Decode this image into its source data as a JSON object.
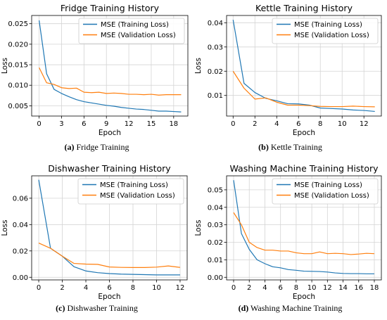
{
  "colors": {
    "train": "#1f77b4",
    "val": "#ff7f0e",
    "grid": "#d4d4d4",
    "axis": "#000000"
  },
  "chart_data": [
    {
      "type": "line",
      "title": "Fridge Training History",
      "xlabel": "Epoch",
      "ylabel": "Loss",
      "xlim": [
        -1,
        19.9
      ],
      "ylim": [
        0.0025,
        0.027
      ],
      "xticks": [
        0,
        3,
        6,
        9,
        12,
        15,
        18
      ],
      "yticks": [
        0.005,
        0.01,
        0.015,
        0.02,
        0.025
      ],
      "ytick_labels": [
        "0.005",
        "0.010",
        "0.015",
        "0.020",
        "0.025"
      ],
      "grid": true,
      "legend": "top-right",
      "x": [
        0,
        1,
        2,
        3,
        4,
        5,
        6,
        7,
        8,
        9,
        10,
        11,
        12,
        13,
        14,
        15,
        16,
        17,
        18,
        19
      ],
      "series": [
        {
          "name": "MSE (Training Loss)",
          "color": "#1f77b4",
          "values": [
            0.0258,
            0.0128,
            0.009,
            0.008,
            0.0072,
            0.0065,
            0.006,
            0.0057,
            0.0054,
            0.0051,
            0.0049,
            0.0046,
            0.0044,
            0.0042,
            0.0041,
            0.0039,
            0.0037,
            0.0037,
            0.0036,
            0.0035
          ]
        },
        {
          "name": "MSE (Validation Loss)",
          "color": "#ff7f0e",
          "values": [
            0.0143,
            0.0106,
            0.0102,
            0.0094,
            0.0092,
            0.0093,
            0.0083,
            0.0082,
            0.0083,
            0.008,
            0.0081,
            0.008,
            0.0078,
            0.0078,
            0.0077,
            0.0078,
            0.0076,
            0.0077,
            0.0077,
            0.0077
          ]
        }
      ],
      "caption": {
        "tag": "(a)",
        "text": "Fridge Training"
      }
    },
    {
      "type": "line",
      "title": "Kettle Training History",
      "xlabel": "Epoch",
      "ylabel": "Loss",
      "xlim": [
        -0.6,
        13.6
      ],
      "ylim": [
        0.0015,
        0.043
      ],
      "xticks": [
        0,
        2,
        4,
        6,
        8,
        10,
        12
      ],
      "yticks": [
        0.01,
        0.02,
        0.03,
        0.04
      ],
      "ytick_labels": [
        "0.01",
        "0.02",
        "0.03",
        "0.04"
      ],
      "grid": true,
      "legend": "top-right",
      "x": [
        0,
        1,
        2,
        3,
        4,
        5,
        6,
        7,
        8,
        9,
        10,
        11,
        12,
        13
      ],
      "series": [
        {
          "name": "MSE (Training Loss)",
          "color": "#1f77b4",
          "values": [
            0.0412,
            0.015,
            0.0112,
            0.0088,
            0.0078,
            0.0066,
            0.0065,
            0.006,
            0.0048,
            0.0046,
            0.0044,
            0.004,
            0.0038,
            0.0034
          ]
        },
        {
          "name": "MSE (Validation Loss)",
          "color": "#ff7f0e",
          "values": [
            0.02,
            0.013,
            0.0085,
            0.009,
            0.0072,
            0.006,
            0.006,
            0.0058,
            0.0055,
            0.0054,
            0.0054,
            0.0056,
            0.0054,
            0.0053
          ]
        }
      ],
      "caption": {
        "tag": "(b)",
        "text": "Kettle Training"
      }
    },
    {
      "type": "line",
      "title": "Dishwasher Training History",
      "xlabel": "Epoch",
      "ylabel": "Loss",
      "xlim": [
        -0.6,
        12.6
      ],
      "ylim": [
        -0.002,
        0.077
      ],
      "xticks": [
        0,
        2,
        4,
        6,
        8,
        10,
        12
      ],
      "yticks": [
        0.0,
        0.02,
        0.04,
        0.06
      ],
      "ytick_labels": [
        "0.00",
        "0.02",
        "0.04",
        "0.06"
      ],
      "grid": true,
      "legend": "top-right",
      "x": [
        0,
        1,
        2,
        3,
        4,
        5,
        6,
        7,
        8,
        9,
        10,
        11,
        12
      ],
      "series": [
        {
          "name": "MSE (Training Loss)",
          "color": "#1f77b4",
          "values": [
            0.074,
            0.022,
            0.016,
            0.008,
            0.0048,
            0.0035,
            0.0028,
            0.0024,
            0.0022,
            0.002,
            0.0018,
            0.0018,
            0.0018
          ]
        },
        {
          "name": "MSE (Validation Loss)",
          "color": "#ff7f0e",
          "values": [
            0.026,
            0.022,
            0.016,
            0.0105,
            0.01,
            0.0098,
            0.0078,
            0.0075,
            0.0074,
            0.0074,
            0.0077,
            0.0086,
            0.0075
          ]
        }
      ],
      "caption": {
        "tag": "(c)",
        "text": "Dishwasher Training"
      }
    },
    {
      "type": "line",
      "title": "Washing Machine Training History",
      "xlabel": "Epoch",
      "ylabel": "Loss",
      "xlim": [
        -0.9,
        18.9
      ],
      "ylim": [
        -0.0015,
        0.058
      ],
      "xticks": [
        0,
        2,
        4,
        6,
        8,
        10,
        12,
        14,
        16,
        18
      ],
      "yticks": [
        0.0,
        0.01,
        0.02,
        0.03,
        0.04,
        0.05
      ],
      "ytick_labels": [
        "0.00",
        "0.01",
        "0.02",
        "0.03",
        "0.04",
        "0.05"
      ],
      "grid": true,
      "legend": "top-right",
      "x": [
        0,
        1,
        2,
        3,
        4,
        5,
        6,
        7,
        8,
        9,
        10,
        11,
        12,
        13,
        14,
        15,
        16,
        17,
        18
      ],
      "series": [
        {
          "name": "MSE (Training Loss)",
          "color": "#1f77b4",
          "values": [
            0.0555,
            0.025,
            0.016,
            0.01,
            0.0078,
            0.006,
            0.0054,
            0.0044,
            0.004,
            0.0035,
            0.0034,
            0.0033,
            0.003,
            0.0025,
            0.0022,
            0.0021,
            0.0021,
            0.002,
            0.002
          ]
        },
        {
          "name": "MSE (Validation Loss)",
          "color": "#ff7f0e",
          "values": [
            0.037,
            0.03,
            0.02,
            0.017,
            0.0155,
            0.0155,
            0.015,
            0.015,
            0.014,
            0.0135,
            0.0135,
            0.0145,
            0.0135,
            0.0137,
            0.0135,
            0.013,
            0.0133,
            0.0137,
            0.0135
          ]
        }
      ],
      "caption": {
        "tag": "(d)",
        "text": "Washing Machine Training"
      }
    }
  ]
}
